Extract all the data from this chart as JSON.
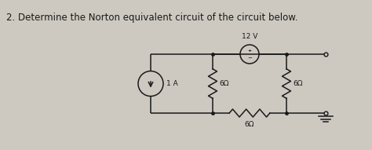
{
  "title": "2. Determine the Norton equivalent circuit of the circuit below.",
  "title_fontsize": 8.5,
  "bg_color": "#cdc9c0",
  "line_color": "#1a1a1a",
  "text_color": "#1a1a1a",
  "circuit": {
    "cs_label": "1 A",
    "r1_label": "6Ω",
    "r2_label": "6Ω",
    "r3_label": "6Ω",
    "vs_label": "12 V"
  }
}
